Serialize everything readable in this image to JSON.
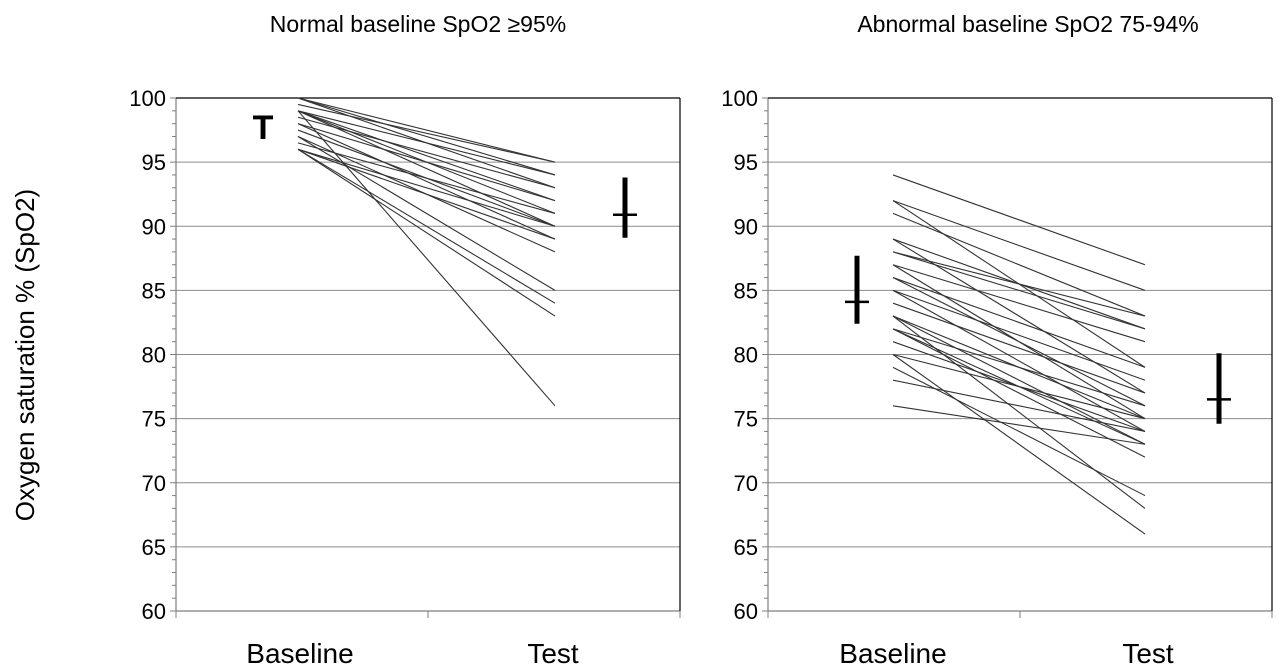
{
  "y_axis_label": "Oxygen saturation % (SpO2)",
  "chart_data": [
    {
      "type": "line",
      "title": "Normal baseline SpO2 ≥95%",
      "categories": [
        "Baseline",
        "Test"
      ],
      "ylim": [
        60,
        100
      ],
      "yticks": [
        "100",
        "95",
        "90",
        "85",
        "80",
        "75",
        "70",
        "65",
        "60"
      ],
      "grid": true,
      "series": [
        {
          "values": [
            100,
            95
          ]
        },
        {
          "values": [
            100,
            94
          ]
        },
        {
          "values": [
            100,
            93
          ]
        },
        {
          "values": [
            99.5,
            95
          ]
        },
        {
          "values": [
            99,
            94
          ]
        },
        {
          "values": [
            99,
            92
          ]
        },
        {
          "values": [
            99,
            91
          ]
        },
        {
          "values": [
            99,
            90
          ]
        },
        {
          "values": [
            98.5,
            93
          ]
        },
        {
          "values": [
            98,
            92
          ]
        },
        {
          "values": [
            98,
            89
          ]
        },
        {
          "values": [
            97.5,
            90
          ]
        },
        {
          "values": [
            97,
            88
          ]
        },
        {
          "values": [
            97,
            85
          ]
        },
        {
          "values": [
            96.5,
            91
          ]
        },
        {
          "values": [
            96,
            90
          ]
        },
        {
          "values": [
            96,
            89
          ]
        },
        {
          "values": [
            96,
            84
          ]
        },
        {
          "values": [
            96,
            83
          ]
        },
        {
          "values": [
            99,
            76
          ]
        }
      ],
      "summary": {
        "baseline": {
          "mean": 98.4,
          "low": 96.8,
          "high": 99.3,
          "label": "T"
        },
        "test": {
          "mean": 90.9,
          "low": 89.1,
          "high": 93.8
        }
      }
    },
    {
      "type": "line",
      "title": "Abnormal baseline SpO2 75-94%",
      "categories": [
        "Baseline",
        "Test"
      ],
      "ylim": [
        60,
        100
      ],
      "yticks": [
        "100",
        "95",
        "90",
        "85",
        "80",
        "75",
        "70",
        "65",
        "60"
      ],
      "grid": true,
      "series": [
        {
          "values": [
            94,
            87
          ]
        },
        {
          "values": [
            92,
            85
          ]
        },
        {
          "values": [
            92,
            79
          ]
        },
        {
          "values": [
            91,
            83
          ]
        },
        {
          "values": [
            89,
            82
          ]
        },
        {
          "values": [
            89,
            77
          ]
        },
        {
          "values": [
            88,
            83
          ]
        },
        {
          "values": [
            88,
            82
          ]
        },
        {
          "values": [
            87,
            81
          ]
        },
        {
          "values": [
            87,
            75
          ]
        },
        {
          "values": [
            86,
            79
          ]
        },
        {
          "values": [
            86,
            76
          ]
        },
        {
          "values": [
            85,
            78
          ]
        },
        {
          "values": [
            85,
            74
          ]
        },
        {
          "values": [
            84,
            77
          ]
        },
        {
          "values": [
            83,
            75
          ]
        },
        {
          "values": [
            83,
            73
          ]
        },
        {
          "values": [
            83,
            68
          ]
        },
        {
          "values": [
            82,
            76
          ]
        },
        {
          "values": [
            82,
            73
          ]
        },
        {
          "values": [
            82,
            72
          ]
        },
        {
          "values": [
            81,
            74
          ]
        },
        {
          "values": [
            80,
            75
          ]
        },
        {
          "values": [
            80,
            66
          ]
        },
        {
          "values": [
            79,
            69
          ]
        },
        {
          "values": [
            78,
            74
          ]
        },
        {
          "values": [
            76,
            73
          ]
        }
      ],
      "summary": {
        "baseline": {
          "mean": 84.1,
          "low": 82.4,
          "high": 87.7
        },
        "test": {
          "mean": 76.5,
          "low": 74.6,
          "high": 80.1
        }
      }
    }
  ]
}
